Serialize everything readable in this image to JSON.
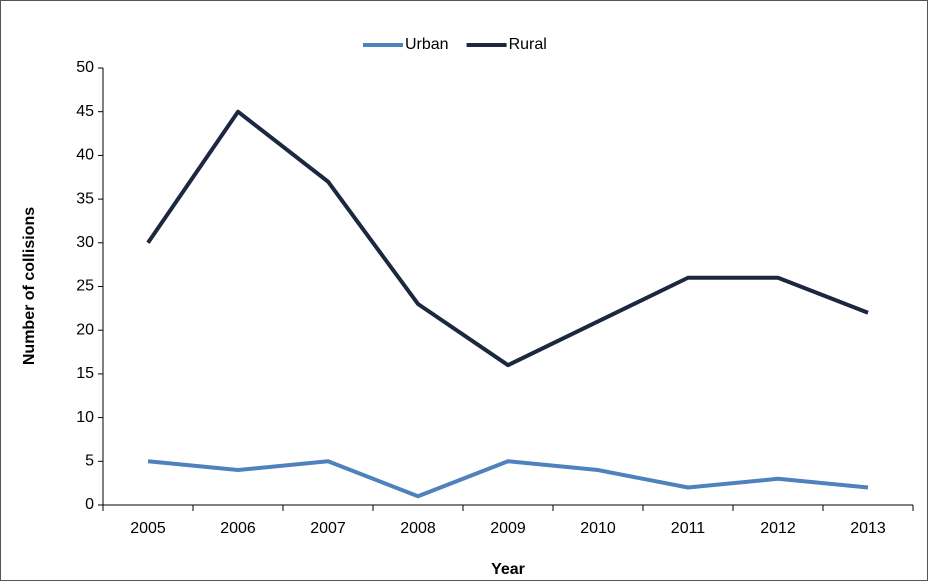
{
  "chart_data": {
    "type": "line",
    "x_label": "Year",
    "y_label": "Number of collisions",
    "categories": [
      "2005",
      "2006",
      "2007",
      "2008",
      "2009",
      "2010",
      "2011",
      "2012",
      "2013"
    ],
    "series": [
      {
        "name": "Urban",
        "color": "#4f81bd",
        "values": [
          5,
          4,
          5,
          1,
          5,
          4,
          2,
          3,
          2
        ]
      },
      {
        "name": "Rural",
        "color": "#1c2740",
        "values": [
          30,
          45,
          37,
          23,
          16,
          21,
          26,
          26,
          22
        ]
      }
    ],
    "ylim": [
      0,
      50
    ],
    "yticks": [
      0,
      5,
      10,
      15,
      20,
      25,
      30,
      35,
      40,
      45,
      50
    ],
    "grid": false,
    "legend": "top"
  }
}
